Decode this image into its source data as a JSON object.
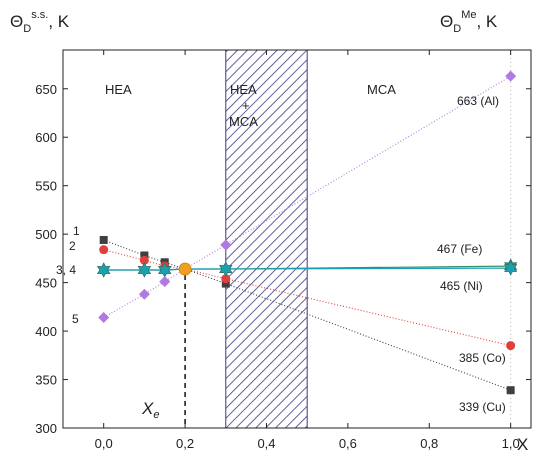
{
  "chart_data": {
    "type": "scatter",
    "title": "",
    "ylabel_left": {
      "main": "Θ",
      "sub": "D",
      "sup": "s.s.",
      "unit": ", K"
    },
    "ylabel_right": {
      "main": "Θ",
      "sub": "D",
      "sup": "Me",
      "unit": ", K"
    },
    "xlabel": "X",
    "xlim": [
      -0.1,
      1.05
    ],
    "ylim": [
      300,
      690
    ],
    "xticks": [
      0.0,
      0.2,
      0.4,
      0.6,
      0.8,
      1.0
    ],
    "xtick_labels": [
      "0,0",
      "0,2",
      "0,4",
      "0,6",
      "0,8",
      "1,0"
    ],
    "yticks": [
      300,
      350,
      400,
      450,
      500,
      550,
      600,
      650
    ],
    "ytick_labels": [
      "300",
      "350",
      "400",
      "450",
      "500",
      "550",
      "600",
      "650"
    ],
    "regions": [
      {
        "label": "HEA",
        "x_center": 0.1
      },
      {
        "label_lines": [
          "HEA",
          "+",
          "MCA"
        ],
        "x_range": [
          0.3,
          0.5
        ],
        "hatched": true
      },
      {
        "label": "MCA",
        "x_center": 0.78
      }
    ],
    "series": [
      {
        "key": "1",
        "label_num": "1",
        "color": "#404040",
        "marker": "square",
        "line_dash": "1,2",
        "points": [
          [
            0.0,
            494
          ],
          [
            0.1,
            478
          ],
          [
            0.15,
            471
          ],
          [
            0.3,
            449
          ]
        ],
        "end_point": [
          1.0,
          339
        ],
        "end_label": "339 (Cu)"
      },
      {
        "key": "2",
        "label_num": "2",
        "color": "#e0403c",
        "marker": "circle",
        "line_dash": "1,2",
        "points": [
          [
            0.0,
            484
          ],
          [
            0.1,
            473
          ],
          [
            0.15,
            467
          ],
          [
            0.3,
            454
          ]
        ],
        "end_point": [
          1.0,
          385
        ],
        "end_label": "385 (Co)"
      },
      {
        "key": "3",
        "label_num": "3, 4",
        "color": "#3a8c78",
        "marker": "star",
        "line_dash": "",
        "points": [
          [
            0.0,
            463
          ],
          [
            0.1,
            463
          ],
          [
            0.15,
            463
          ],
          [
            0.3,
            464
          ]
        ],
        "end_point": [
          1.0,
          467
        ],
        "end_label": "467 (Fe)"
      },
      {
        "key": "4",
        "label_num": "",
        "color": "#1aa0b0",
        "marker": "star",
        "line_dash": "",
        "points": [
          [
            0.0,
            463
          ],
          [
            0.1,
            463
          ],
          [
            0.15,
            463
          ],
          [
            0.3,
            464
          ]
        ],
        "end_point": [
          1.0,
          465
        ],
        "end_label": "465 (Ni)"
      },
      {
        "key": "5",
        "label_num": "5",
        "color": "#b07ae0",
        "marker": "diamond",
        "line_dash": "1,2",
        "points": [
          [
            0.0,
            414
          ],
          [
            0.1,
            438
          ],
          [
            0.15,
            451
          ],
          [
            0.3,
            489
          ]
        ],
        "end_point": [
          1.0,
          663
        ],
        "end_label": "663 (Al)"
      }
    ],
    "intersection": {
      "x": 0.2,
      "y": 464,
      "label": "X",
      "label_sub": "e",
      "color": "#f0a020"
    }
  }
}
